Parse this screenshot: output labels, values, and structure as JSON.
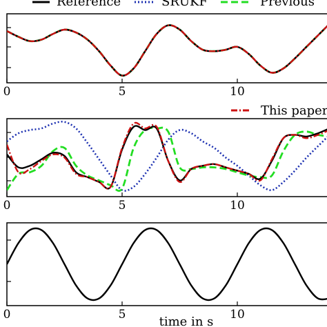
{
  "chart_data": [
    {
      "type": "line",
      "panel": "top",
      "xlim": [
        0,
        14
      ],
      "x_ticks": [
        0,
        5,
        10
      ],
      "x_tick_labels": [
        "0",
        "5",
        "10"
      ],
      "ylim": [
        -1.2,
        1.2
      ],
      "grid": false,
      "legend": "top",
      "legend_entries": [
        "Reference",
        "SRUKF",
        "Previous"
      ],
      "series": [
        {
          "name": "Reference",
          "color": "#000000",
          "style": "solid",
          "x": [
            0,
            0.5,
            1,
            1.5,
            2,
            2.5,
            3,
            3.5,
            4,
            4.5,
            5,
            5.5,
            6,
            6.5,
            7,
            7.5,
            8,
            8.5,
            9,
            9.5,
            10,
            10.5,
            11,
            11.5,
            12,
            12.5,
            13,
            13.5,
            14
          ],
          "y": [
            0.6,
            0.4,
            0.25,
            0.3,
            0.5,
            0.65,
            0.55,
            0.3,
            -0.1,
            -0.6,
            -0.95,
            -0.7,
            -0.1,
            0.5,
            0.8,
            0.65,
            0.25,
            -0.05,
            -0.1,
            -0.05,
            0.05,
            -0.2,
            -0.6,
            -0.85,
            -0.7,
            -0.35,
            0.05,
            0.45,
            0.85
          ]
        },
        {
          "name": "SRUKF",
          "color": "#1b2fb0",
          "style": "dotted",
          "x": [
            0,
            0.5,
            1,
            1.5,
            2,
            2.5,
            3,
            3.5,
            4,
            4.5,
            5,
            5.5,
            6,
            6.5,
            7,
            7.5,
            8,
            8.5,
            9,
            9.5,
            10,
            10.5,
            11,
            11.5,
            12,
            12.5,
            13,
            13.5,
            14
          ],
          "y": [
            0.6,
            0.4,
            0.25,
            0.3,
            0.5,
            0.65,
            0.55,
            0.3,
            -0.1,
            -0.6,
            -0.95,
            -0.7,
            -0.1,
            0.5,
            0.8,
            0.65,
            0.25,
            -0.05,
            -0.1,
            -0.05,
            0.05,
            -0.2,
            -0.6,
            -0.85,
            -0.7,
            -0.35,
            0.05,
            0.45,
            0.85
          ]
        },
        {
          "name": "Previous",
          "color": "#22dd22",
          "style": "dashed",
          "x": [
            0,
            0.5,
            1,
            1.5,
            2,
            2.5,
            3,
            3.5,
            4,
            4.5,
            5,
            5.5,
            6,
            6.5,
            7,
            7.5,
            8,
            8.5,
            9,
            9.5,
            10,
            10.5,
            11,
            11.5,
            12,
            12.5,
            13,
            13.5,
            14
          ],
          "y": [
            0.6,
            0.4,
            0.25,
            0.3,
            0.5,
            0.65,
            0.55,
            0.3,
            -0.1,
            -0.6,
            -0.95,
            -0.7,
            -0.1,
            0.5,
            0.8,
            0.65,
            0.25,
            -0.05,
            -0.1,
            -0.05,
            0.05,
            -0.2,
            -0.6,
            -0.85,
            -0.7,
            -0.35,
            0.05,
            0.45,
            0.85
          ]
        },
        {
          "name": "This paper",
          "color": "#cc1111",
          "style": "dashdot",
          "x": [
            0,
            0.5,
            1,
            1.5,
            2,
            2.5,
            3,
            3.5,
            4,
            4.5,
            5,
            5.5,
            6,
            6.5,
            7,
            7.5,
            8,
            8.5,
            9,
            9.5,
            10,
            10.5,
            11,
            11.5,
            12,
            12.5,
            13,
            13.5,
            14
          ],
          "y": [
            0.6,
            0.4,
            0.25,
            0.3,
            0.5,
            0.65,
            0.55,
            0.3,
            -0.1,
            -0.6,
            -0.95,
            -0.7,
            -0.1,
            0.5,
            0.8,
            0.65,
            0.25,
            -0.05,
            -0.1,
            -0.05,
            0.05,
            -0.2,
            -0.6,
            -0.85,
            -0.7,
            -0.35,
            0.05,
            0.45,
            0.85
          ]
        }
      ]
    },
    {
      "type": "line",
      "panel": "middle",
      "xlim": [
        0,
        14
      ],
      "x_ticks": [
        0,
        5,
        10
      ],
      "x_tick_labels": [
        "0",
        "5",
        "10"
      ],
      "ylim": [
        -1.2,
        1.2
      ],
      "grid": false,
      "legend": "top-right",
      "legend_entries": [
        "This paper"
      ],
      "series": [
        {
          "name": "Reference",
          "color": "#000000",
          "style": "solid",
          "x": [
            0,
            0.5,
            1,
            1.5,
            2,
            2.5,
            3,
            3.5,
            4,
            4.5,
            5,
            5.5,
            6,
            6.5,
            7,
            7.5,
            8,
            8.5,
            9,
            9.5,
            10,
            10.5,
            11,
            11.5,
            12,
            12.5,
            13,
            13.5,
            14
          ],
          "y": [
            0.1,
            -0.3,
            -0.25,
            -0.05,
            0.15,
            0.05,
            -0.45,
            -0.6,
            -0.75,
            -0.9,
            0.25,
            0.95,
            0.85,
            0.9,
            -0.1,
            -0.7,
            -0.35,
            -0.25,
            -0.2,
            -0.3,
            -0.4,
            -0.5,
            -0.65,
            -0.1,
            0.6,
            0.7,
            0.65,
            0.75,
            0.9
          ]
        },
        {
          "name": "SRUKF",
          "color": "#1b2fb0",
          "style": "dotted",
          "x": [
            0,
            0.5,
            1,
            1.5,
            2,
            2.5,
            3,
            3.5,
            4,
            4.5,
            5,
            5.5,
            6,
            6.5,
            7,
            7.5,
            8,
            8.5,
            9,
            9.5,
            10,
            10.5,
            11,
            11.5,
            12,
            12.5,
            13,
            13.5,
            14
          ],
          "y": [
            0.5,
            0.75,
            0.85,
            0.9,
            1.05,
            1.1,
            0.9,
            0.45,
            -0.05,
            -0.55,
            -1.0,
            -0.9,
            -0.5,
            0.0,
            0.55,
            0.85,
            0.75,
            0.5,
            0.3,
            0.0,
            -0.25,
            -0.55,
            -0.85,
            -1.0,
            -0.75,
            -0.4,
            0.0,
            0.35,
            0.7
          ]
        },
        {
          "name": "Previous",
          "color": "#22dd22",
          "style": "dashed",
          "x": [
            0,
            0.5,
            1,
            1.5,
            2,
            2.5,
            3,
            3.5,
            4,
            4.5,
            5,
            5.5,
            6,
            6.5,
            7,
            7.5,
            8,
            8.5,
            9,
            9.5,
            10,
            10.5,
            11,
            11.5,
            12,
            12.5,
            13,
            13.5,
            14
          ],
          "y": [
            -1.0,
            -0.5,
            -0.45,
            -0.25,
            0.2,
            0.3,
            -0.25,
            -0.55,
            -0.7,
            -0.85,
            -0.95,
            0.3,
            0.85,
            0.9,
            0.8,
            -0.3,
            -0.35,
            -0.3,
            -0.3,
            -0.35,
            -0.45,
            -0.55,
            -0.6,
            -0.55,
            0.2,
            0.7,
            0.8,
            0.7,
            0.65
          ]
        },
        {
          "name": "This paper",
          "color": "#cc1111",
          "style": "dashdot",
          "x": [
            0,
            0.5,
            1,
            1.5,
            2,
            2.5,
            3,
            3.5,
            4,
            4.5,
            5,
            5.5,
            6,
            6.5,
            7,
            7.5,
            8,
            8.5,
            9,
            9.5,
            10,
            10.5,
            11,
            11.5,
            12,
            12.5,
            13,
            13.5,
            14
          ],
          "y": [
            0.4,
            -0.45,
            -0.35,
            -0.1,
            0.1,
            0.0,
            -0.5,
            -0.6,
            -0.75,
            -0.9,
            0.3,
            1.05,
            0.9,
            0.95,
            -0.1,
            -0.75,
            -0.35,
            -0.25,
            -0.2,
            -0.3,
            -0.4,
            -0.5,
            -0.7,
            -0.05,
            0.6,
            0.7,
            0.6,
            0.7,
            0.85
          ]
        }
      ]
    },
    {
      "type": "line",
      "panel": "bottom",
      "xlim": [
        0,
        14
      ],
      "x_ticks": [
        0,
        5,
        10
      ],
      "x_tick_labels": [
        "0",
        "5",
        "10"
      ],
      "ylim": [
        -1.15,
        1.15
      ],
      "grid": false,
      "xlabel": "time in s",
      "series": [
        {
          "name": "Reference",
          "color": "#000000",
          "style": "solid",
          "x": [
            0,
            0.5,
            1,
            1.5,
            2,
            2.5,
            3,
            3.5,
            4,
            4.5,
            5,
            5.5,
            6,
            6.5,
            7,
            7.5,
            8,
            8.5,
            9,
            9.5,
            10,
            10.5,
            11,
            11.5,
            12,
            12.5,
            13,
            13.5,
            14
          ],
          "y": [
            0.0,
            0.588,
            0.951,
            0.951,
            0.588,
            0.0,
            -0.588,
            -0.951,
            -0.951,
            -0.588,
            0.0,
            0.588,
            0.951,
            0.951,
            0.588,
            0.0,
            -0.588,
            -0.951,
            -0.951,
            -0.588,
            0.0,
            0.588,
            0.951,
            0.951,
            0.588,
            0.0,
            -0.588,
            -0.951,
            -0.951
          ]
        }
      ]
    }
  ],
  "legend": {
    "reference": "Reference",
    "srukf": "SRUKF",
    "previous": "Previous",
    "this_paper": "This paper"
  },
  "colors": {
    "reference": "#000000",
    "srukf": "#1b2fb0",
    "previous": "#22dd22",
    "this_paper": "#cc1111"
  }
}
